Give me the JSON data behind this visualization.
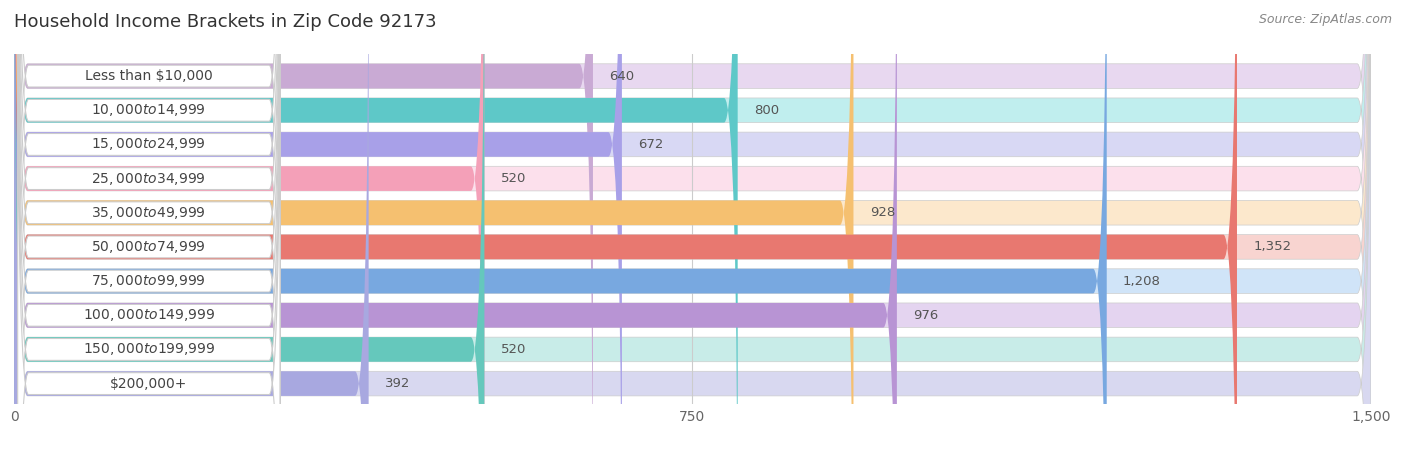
{
  "title": "Household Income Brackets in Zip Code 92173",
  "source": "Source: ZipAtlas.com",
  "categories": [
    "Less than $10,000",
    "$10,000 to $14,999",
    "$15,000 to $24,999",
    "$25,000 to $34,999",
    "$35,000 to $49,999",
    "$50,000 to $74,999",
    "$75,000 to $99,999",
    "$100,000 to $149,999",
    "$150,000 to $199,999",
    "$200,000+"
  ],
  "values": [
    640,
    800,
    672,
    520,
    928,
    1352,
    1208,
    976,
    520,
    392
  ],
  "bar_colors": [
    "#c9aad4",
    "#5ec8c8",
    "#a8a0e8",
    "#f4a0b8",
    "#f5c070",
    "#e87870",
    "#78a8e0",
    "#b894d4",
    "#65c8bc",
    "#a8a8e0"
  ],
  "bar_bg_colors": [
    "#e8d8f0",
    "#c0eeee",
    "#d8d8f4",
    "#fce0ec",
    "#fce8cc",
    "#f8d4d0",
    "#d0e4f8",
    "#e4d4f0",
    "#c8ece8",
    "#d8d8f0"
  ],
  "xlim": [
    0,
    1500
  ],
  "xticks": [
    0,
    750,
    1500
  ],
  "value_labels": [
    "640",
    "800",
    "672",
    "520",
    "928",
    "1,352",
    "1,208",
    "976",
    "520",
    "392"
  ],
  "background_color": "#ffffff",
  "row_bg_color": "#f0f0f0",
  "title_fontsize": 13,
  "label_fontsize": 10,
  "value_fontsize": 9.5
}
